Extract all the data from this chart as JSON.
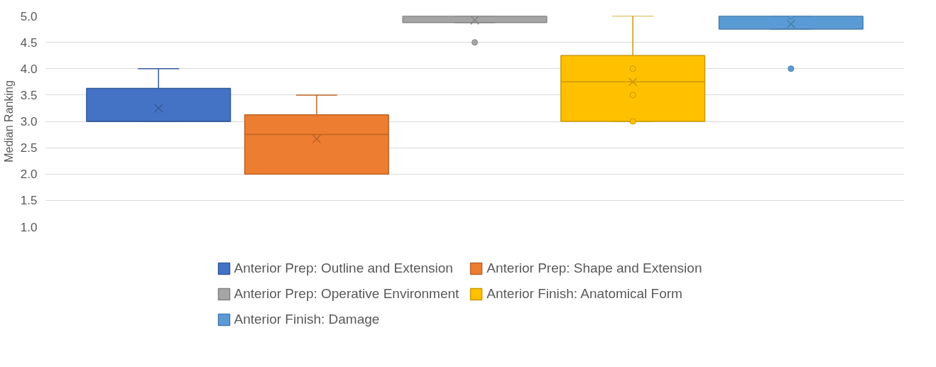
{
  "chart_data": {
    "type": "box",
    "ylabel": "Median Ranking",
    "categories": [
      null
    ],
    "ylim": [
      1.0,
      5.0
    ],
    "yticks": [
      {
        "value": 1,
        "label": "1.0"
      },
      {
        "value": 1.5,
        "label": "1.5"
      },
      {
        "value": 2,
        "label": "2.0"
      },
      {
        "value": 2.5,
        "label": "2.5"
      },
      {
        "value": 3,
        "label": "3.0"
      },
      {
        "value": 3.5,
        "label": "3.5"
      },
      {
        "value": 4,
        "label": "4.0"
      },
      {
        "value": 4.5,
        "label": "4.5"
      },
      {
        "value": 5,
        "label": "5.0"
      }
    ],
    "grid": "y",
    "legend": "bottom",
    "series": [
      {
        "name": "Anterior Prep: Outline and Extension",
        "color": "#4472c4",
        "boxes": [
          {
            "low": 3.0,
            "q1": 3.0,
            "median": 3.0,
            "q3": 3.625,
            "high": 4.0,
            "mean": 3.25
          }
        ]
      },
      {
        "name": "Anterior Prep: Shape and Extension",
        "color": "#ed7d31",
        "boxes": [
          {
            "low": 2.0,
            "q1": 2.0,
            "median": 2.75,
            "q3": 3.125,
            "high": 3.5,
            "mean": 2.67
          }
        ]
      },
      {
        "name": "Anterior Prep: Operative Environment",
        "color": "#a5a5a5",
        "boxes": [
          {
            "low": 4.875,
            "q1": 4.875,
            "median": 5.0,
            "q3": 5.0,
            "high": 5.0,
            "mean": 4.92,
            "outliers": [
              4.5
            ]
          }
        ]
      },
      {
        "name": "Anterior Finish: Anatomical Form",
        "color": "#ffc000",
        "boxes": [
          {
            "low": 3.0,
            "q1": 3.0,
            "median": 3.75,
            "q3": 4.25,
            "high": 5.0,
            "mean": 3.75,
            "outliers": [
              4.0,
              3.5,
              3.0
            ]
          }
        ]
      },
      {
        "name": "Anterior Finish: Damage",
        "color": "#5b9bd5",
        "boxes": [
          {
            "low": 4.75,
            "q1": 4.75,
            "median": 5.0,
            "q3": 5.0,
            "high": 5.0,
            "mean": 4.85,
            "outliers": [
              5.0,
              4.0
            ]
          }
        ]
      }
    ]
  }
}
